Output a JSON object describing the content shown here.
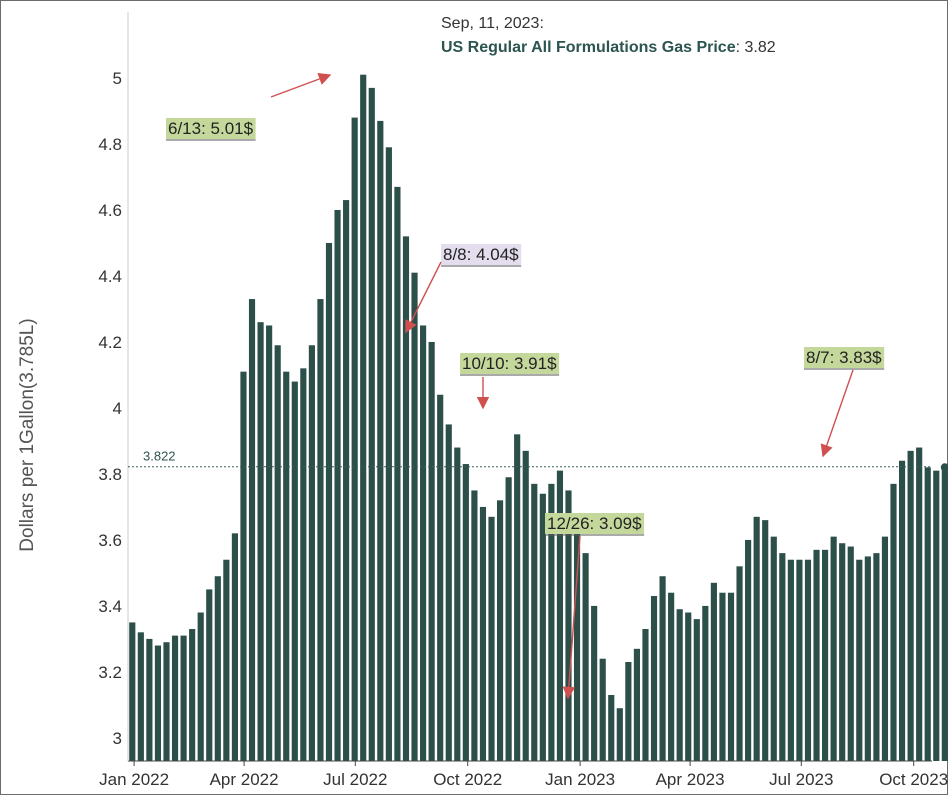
{
  "chart_data": {
    "type": "bar",
    "ylabel": "Dollars per 1Gallon(3.785L)",
    "ylim": [
      2.93,
      5.2
    ],
    "y_ticks": [
      "3",
      "3.2",
      "3.4",
      "3.6",
      "3.8",
      "4",
      "4.2",
      "4.4",
      "4.6",
      "4.8",
      "5"
    ],
    "x_ticks": [
      {
        "label": "Jan 2022",
        "date": "2022-01-01"
      },
      {
        "label": "Apr 2022",
        "date": "2022-04-01"
      },
      {
        "label": "Jul 2022",
        "date": "2022-07-01"
      },
      {
        "label": "Oct 2022",
        "date": "2022-10-01"
      },
      {
        "label": "Jan 2023",
        "date": "2023-01-01"
      },
      {
        "label": "Apr 2023",
        "date": "2023-04-01"
      },
      {
        "label": "Jul 2023",
        "date": "2023-07-01"
      },
      {
        "label": "Oct 2023",
        "date": "2023-10-01"
      }
    ],
    "x_start": "2021-12-27",
    "x_end": "2023-10-16",
    "bar_color": "#2d4f4a",
    "series": [
      {
        "name": "US Regular All Formulations Gas Price",
        "frequency": "weekly",
        "values": [
          3.35,
          3.32,
          3.3,
          3.28,
          3.29,
          3.31,
          3.31,
          3.33,
          3.38,
          3.45,
          3.49,
          3.54,
          3.62,
          4.11,
          4.33,
          4.26,
          4.25,
          4.19,
          4.11,
          4.08,
          4.12,
          4.19,
          4.33,
          4.5,
          4.6,
          4.63,
          4.88,
          5.01,
          4.97,
          4.87,
          4.79,
          4.67,
          4.52,
          4.41,
          4.25,
          4.2,
          4.04,
          3.95,
          3.88,
          3.83,
          3.75,
          3.7,
          3.67,
          3.72,
          3.79,
          3.92,
          3.87,
          3.77,
          3.74,
          3.77,
          3.81,
          3.75,
          3.67,
          3.56,
          3.4,
          3.24,
          3.13,
          3.09,
          3.23,
          3.27,
          3.33,
          3.43,
          3.49,
          3.44,
          3.39,
          3.38,
          3.36,
          3.4,
          3.47,
          3.44,
          3.44,
          3.52,
          3.6,
          3.67,
          3.66,
          3.61,
          3.56,
          3.54,
          3.54,
          3.54,
          3.57,
          3.57,
          3.61,
          3.59,
          3.58,
          3.54,
          3.55,
          3.56,
          3.61,
          3.77,
          3.84,
          3.87,
          3.88,
          3.82,
          3.81,
          3.82
        ]
      }
    ],
    "reference_line": {
      "value": 3.822,
      "label": "3.822"
    },
    "annotations": [
      {
        "text": "6/13: 5.01$",
        "bg": "#c5d89c"
      },
      {
        "text": "8/8: 4.04$",
        "bg": "#e4dded"
      },
      {
        "text": "10/10: 3.91$",
        "bg": "#c5d89c"
      },
      {
        "text": "12/26: 3.09$",
        "bg": "#c5d89c"
      },
      {
        "text": "8/7: 3.83$",
        "bg": "#c5d89c"
      }
    ],
    "tooltip": {
      "date": "Sep, 11, 2023:",
      "series": "US Regular All Formulations Gas Price",
      "value": ": 3.82"
    },
    "grid": false,
    "legend": "none"
  }
}
